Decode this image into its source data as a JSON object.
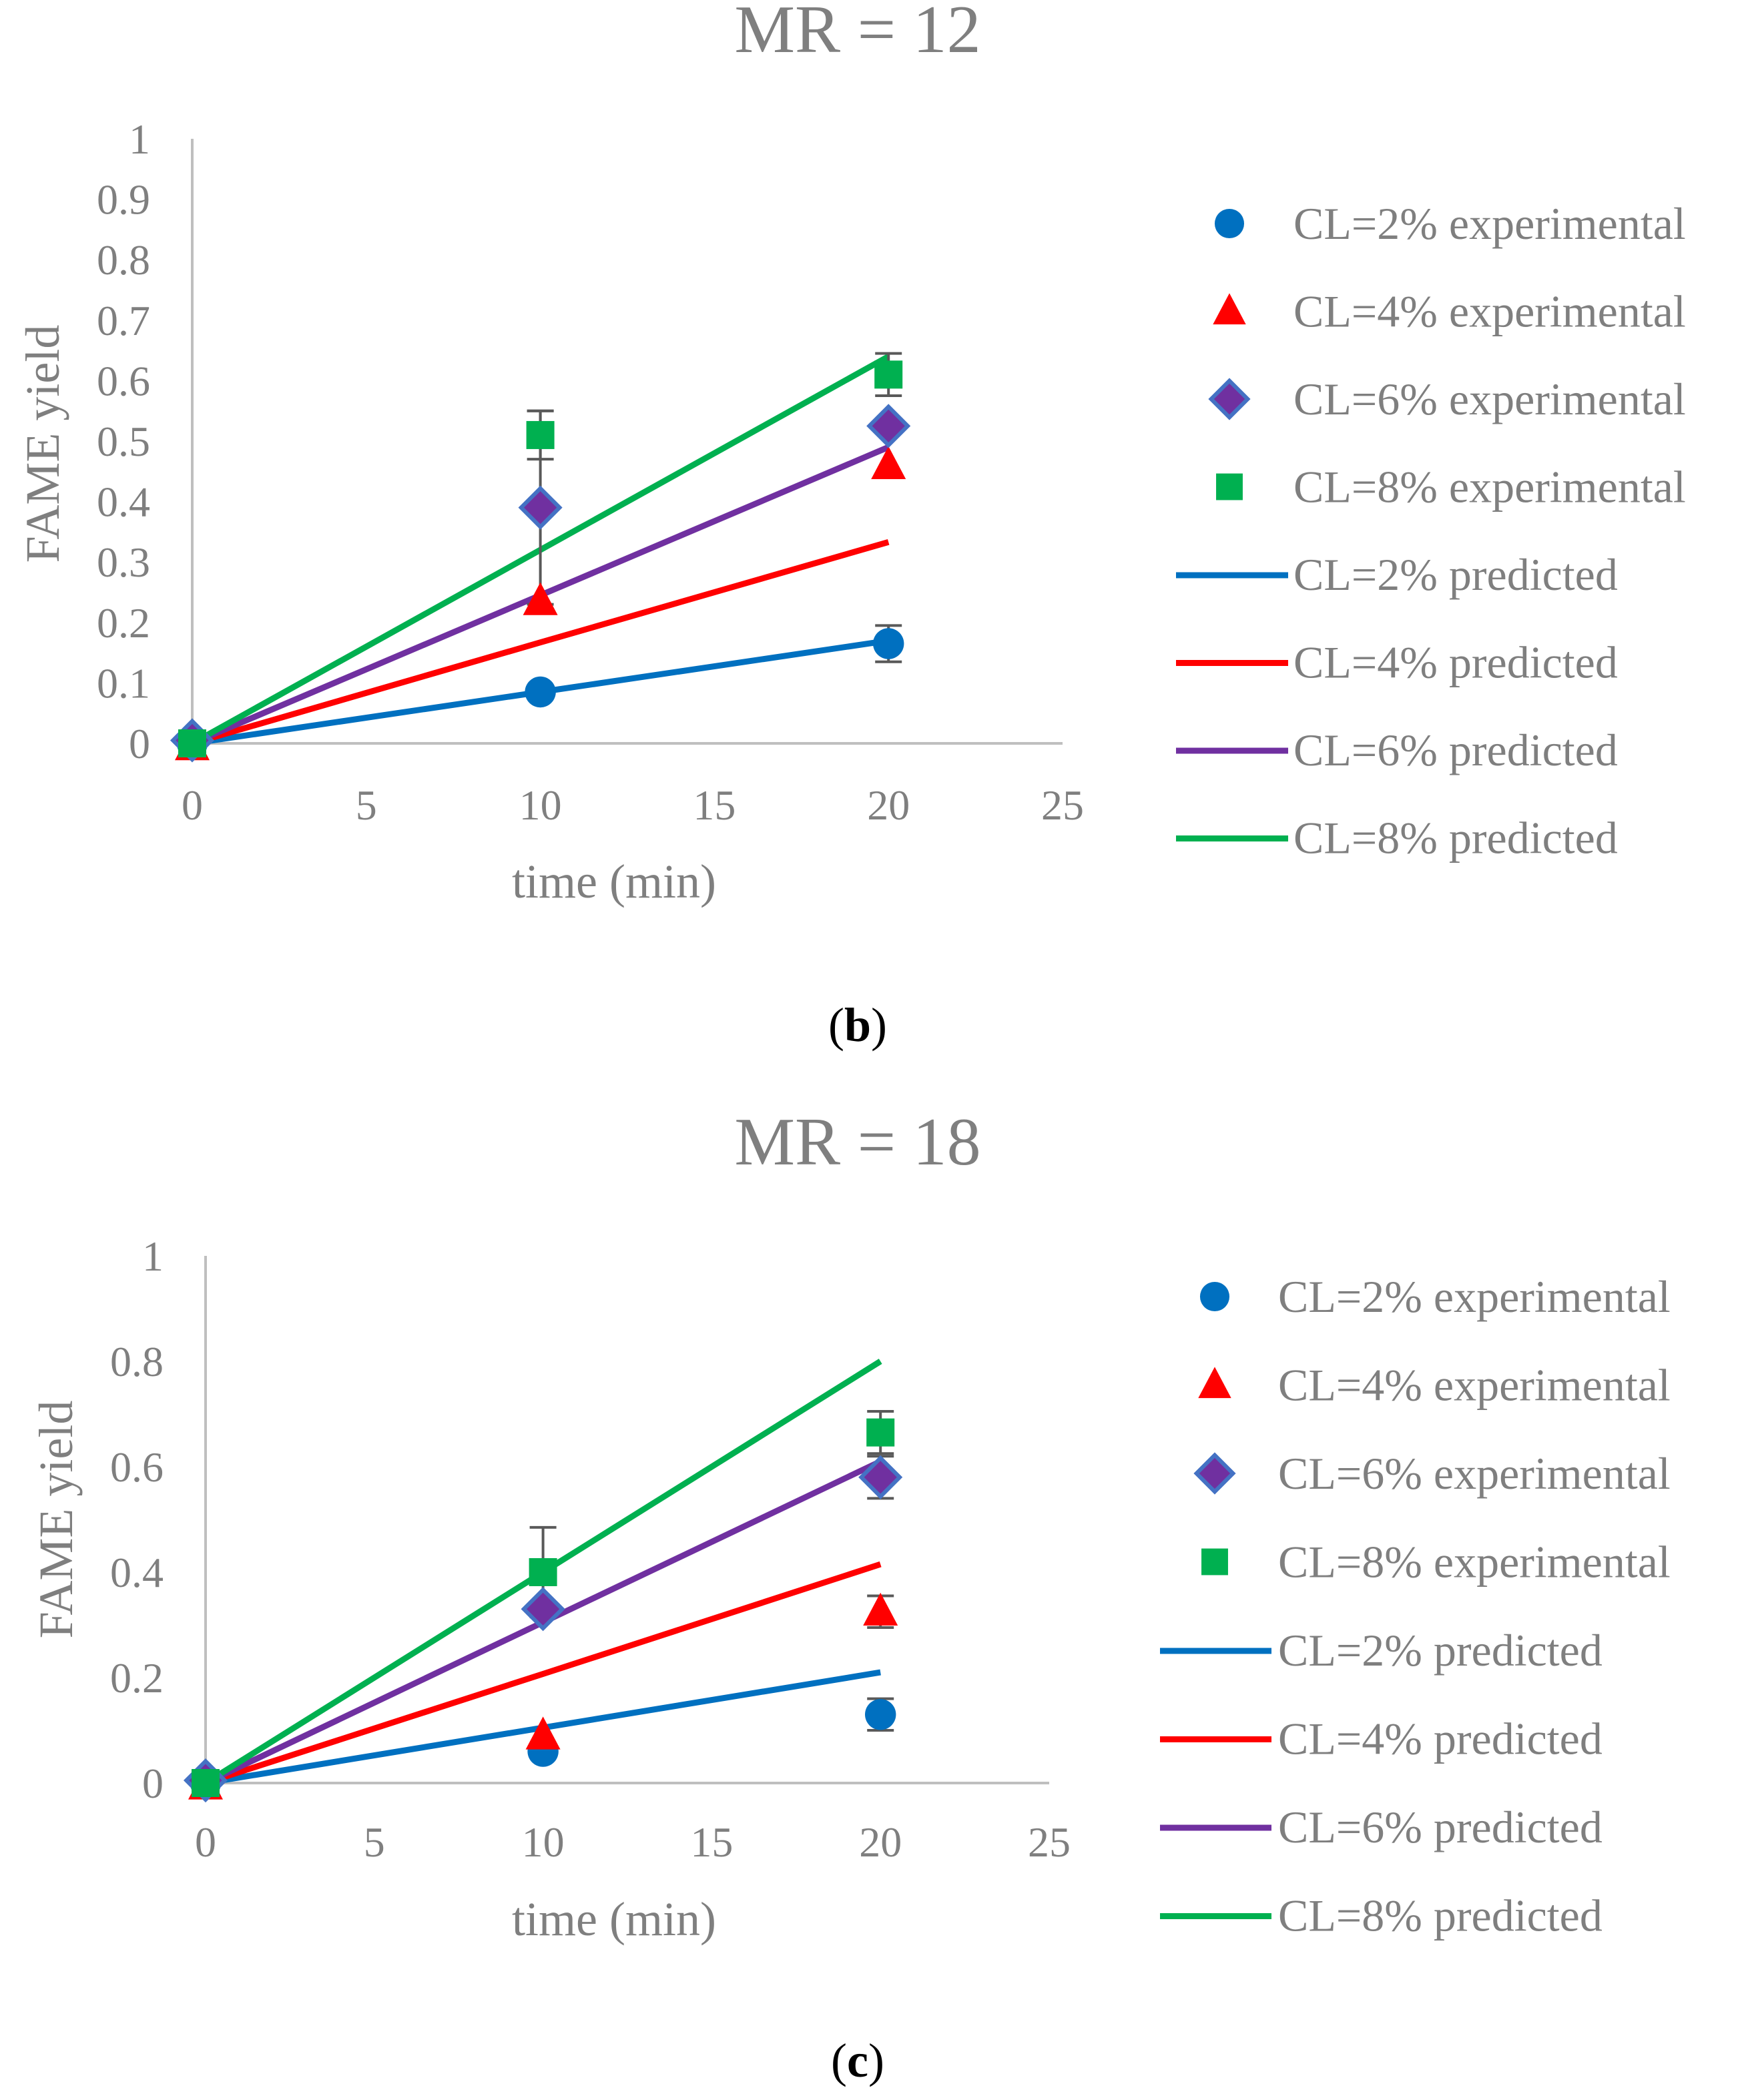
{
  "colors": {
    "cl2": "#0070c0",
    "cl4": "#ff0000",
    "cl6": "#7030a0",
    "cl8": "#00b050",
    "diamond_fill": "#4472c4",
    "axis": "#bfbfbf",
    "text": "#7f7f7f"
  },
  "chart_data": [
    {
      "type": "scatter",
      "title": "MR = 12",
      "xlabel": "time (min)",
      "ylabel": "FAME yield",
      "xlim": [
        0,
        25
      ],
      "ylim": [
        0,
        1
      ],
      "xticks": [
        "0",
        "5",
        "10",
        "15",
        "20",
        "25"
      ],
      "yticks": [
        "0",
        "0.1",
        "0.2",
        "0.3",
        "0.4",
        "0.5",
        "0.6",
        "0.7",
        "0.8",
        "0.9",
        "1"
      ],
      "grid": false,
      "legend_position": "right",
      "caption_open": "(",
      "caption_letter": "b",
      "caption_close": ")",
      "series": [
        {
          "name": "CL=2% experimental",
          "kind": "marker",
          "marker": "circle",
          "color_key": "cl2",
          "x": [
            0,
            10,
            20
          ],
          "y": [
            0,
            0.085,
            0.165
          ],
          "err": [
            0,
            0.01,
            0.03
          ]
        },
        {
          "name": "CL=4% experimental",
          "kind": "marker",
          "marker": "triangle",
          "color_key": "cl4",
          "x": [
            0,
            10,
            20
          ],
          "y": [
            -0.005,
            0.235,
            0.46
          ],
          "err": [
            0,
            0,
            0
          ]
        },
        {
          "name": "CL=6% experimental",
          "kind": "marker",
          "marker": "diamond",
          "color_key": "cl6",
          "x": [
            0,
            10,
            20
          ],
          "y": [
            0.005,
            0.39,
            0.525
          ],
          "err": [
            0,
            0.16,
            0
          ]
        },
        {
          "name": "CL=8% experimental",
          "kind": "marker",
          "marker": "square",
          "color_key": "cl8",
          "x": [
            0,
            10,
            20
          ],
          "y": [
            0,
            0.51,
            0.61
          ],
          "err": [
            0,
            0.04,
            0.035
          ]
        },
        {
          "name": "CL=2% predicted",
          "kind": "line",
          "color_key": "cl2",
          "x": [
            0,
            10,
            20
          ],
          "y": [
            0,
            0.085,
            0.17
          ]
        },
        {
          "name": "CL=4% predicted",
          "kind": "line",
          "color_key": "cl4",
          "x": [
            0,
            10,
            20
          ],
          "y": [
            0,
            0.167,
            0.333
          ]
        },
        {
          "name": "CL=6% predicted",
          "kind": "line",
          "color_key": "cl6",
          "x": [
            0,
            10,
            20
          ],
          "y": [
            0,
            0.245,
            0.49
          ]
        },
        {
          "name": "CL=8% predicted",
          "kind": "line",
          "color_key": "cl8",
          "x": [
            0,
            10,
            20
          ],
          "y": [
            0,
            0.32,
            0.64
          ]
        }
      ]
    },
    {
      "type": "scatter",
      "title": "MR = 18",
      "xlabel": "time (min)",
      "ylabel": "FAME yield",
      "xlim": [
        0,
        25
      ],
      "ylim": [
        0,
        1
      ],
      "xticks": [
        "0",
        "5",
        "10",
        "15",
        "20",
        "25"
      ],
      "yticks": [
        "0",
        "0.2",
        "0.4",
        "0.6",
        "0.8",
        "1"
      ],
      "grid": false,
      "legend_position": "right",
      "caption_open": "(",
      "caption_letter": "c",
      "caption_close": ")",
      "series": [
        {
          "name": "CL=2% experimental",
          "kind": "marker",
          "marker": "circle",
          "color_key": "cl2",
          "x": [
            0,
            10,
            20
          ],
          "y": [
            0,
            0.06,
            0.13
          ],
          "err": [
            0,
            0,
            0.03
          ]
        },
        {
          "name": "CL=4% experimental",
          "kind": "marker",
          "marker": "triangle",
          "color_key": "cl4",
          "x": [
            0,
            10,
            20
          ],
          "y": [
            -0.005,
            0.09,
            0.325
          ],
          "err": [
            0,
            0,
            0.03
          ]
        },
        {
          "name": "CL=6% experimental",
          "kind": "marker",
          "marker": "diamond",
          "color_key": "cl6",
          "x": [
            0,
            10,
            20
          ],
          "y": [
            0.005,
            0.33,
            0.58
          ],
          "err": [
            0,
            0,
            0.04
          ]
        },
        {
          "name": "CL=8% experimental",
          "kind": "marker",
          "marker": "square",
          "color_key": "cl8",
          "x": [
            0,
            10,
            20
          ],
          "y": [
            0,
            0.4,
            0.665
          ],
          "err": [
            0,
            0.085,
            0.04
          ]
        },
        {
          "name": "CL=2% predicted",
          "kind": "line",
          "color_key": "cl2",
          "x": [
            0,
            10,
            20
          ],
          "y": [
            0,
            0.105,
            0.21
          ]
        },
        {
          "name": "CL=4% predicted",
          "kind": "line",
          "color_key": "cl4",
          "x": [
            0,
            10,
            20
          ],
          "y": [
            0,
            0.207,
            0.415
          ]
        },
        {
          "name": "CL=6% predicted",
          "kind": "line",
          "color_key": "cl6",
          "x": [
            0,
            10,
            20
          ],
          "y": [
            0,
            0.305,
            0.61
          ]
        },
        {
          "name": "CL=8% predicted",
          "kind": "line",
          "color_key": "cl8",
          "x": [
            0,
            10,
            20
          ],
          "y": [
            0,
            0.4,
            0.8
          ]
        }
      ]
    }
  ]
}
